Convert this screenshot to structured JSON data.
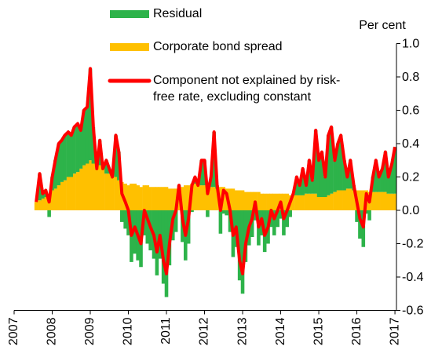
{
  "chart_data": {
    "type": "bar",
    "y_axis_label": "Per cent",
    "x": [
      2007.58,
      2007.67,
      2007.75,
      2007.83,
      2007.92,
      2008,
      2008.08,
      2008.17,
      2008.25,
      2008.33,
      2008.42,
      2008.5,
      2008.58,
      2008.67,
      2008.75,
      2008.83,
      2008.92,
      2009,
      2009.08,
      2009.17,
      2009.25,
      2009.33,
      2009.42,
      2009.5,
      2009.58,
      2009.67,
      2009.75,
      2009.83,
      2009.92,
      2010,
      2010.08,
      2010.17,
      2010.25,
      2010.33,
      2010.42,
      2010.5,
      2010.58,
      2010.67,
      2010.75,
      2010.83,
      2010.92,
      2011,
      2011.08,
      2011.17,
      2011.25,
      2011.33,
      2011.42,
      2011.5,
      2011.58,
      2011.67,
      2011.75,
      2011.83,
      2011.92,
      2012,
      2012.08,
      2012.17,
      2012.25,
      2012.33,
      2012.42,
      2012.5,
      2012.58,
      2012.67,
      2012.75,
      2012.83,
      2012.92,
      2013,
      2013.08,
      2013.17,
      2013.25,
      2013.33,
      2013.42,
      2013.5,
      2013.58,
      2013.67,
      2013.75,
      2013.83,
      2013.92,
      2014,
      2014.08,
      2014.17,
      2014.25,
      2014.33,
      2014.42,
      2014.5,
      2014.58,
      2014.67,
      2014.75,
      2014.83,
      2014.92,
      2015,
      2015.08,
      2015.17,
      2015.25,
      2015.33,
      2015.42,
      2015.5,
      2015.58,
      2015.67,
      2015.75,
      2015.83,
      2015.92,
      2016,
      2016.08,
      2016.17,
      2016.25,
      2016.33,
      2016.42,
      2016.5,
      2016.58,
      2016.67,
      2016.75,
      2016.83,
      2016.92,
      2017
    ],
    "series": [
      {
        "name": "Corporate bond spread",
        "color": "#ffc000",
        "type": "bar",
        "values": [
          0.05,
          0.06,
          0.07,
          0.08,
          0.09,
          0.12,
          0.13,
          0.15,
          0.17,
          0.18,
          0.2,
          0.2,
          0.22,
          0.23,
          0.25,
          0.27,
          0.28,
          0.3,
          0.28,
          0.25,
          0.27,
          0.25,
          0.22,
          0.22,
          0.2,
          0.2,
          0.18,
          0.17,
          0.16,
          0.15,
          0.16,
          0.16,
          0.15,
          0.14,
          0.15,
          0.15,
          0.14,
          0.14,
          0.14,
          0.14,
          0.14,
          0.14,
          0.13,
          0.13,
          0.13,
          0.13,
          0.14,
          0.15,
          0.15,
          0.16,
          0.16,
          0.15,
          0.15,
          0.15,
          0.14,
          0.14,
          0.14,
          0.13,
          0.14,
          0.14,
          0.13,
          0.13,
          0.13,
          0.12,
          0.12,
          0.12,
          0.11,
          0.11,
          0.11,
          0.11,
          0.11,
          0.1,
          0.1,
          0.1,
          0.1,
          0.1,
          0.1,
          0.1,
          0.1,
          0.1,
          0.09,
          0.09,
          0.09,
          0.09,
          0.09,
          0.1,
          0.1,
          0.1,
          0.1,
          0.08,
          0.08,
          0.08,
          0.09,
          0.1,
          0.11,
          0.12,
          0.12,
          0.12,
          0.13,
          0.13,
          0.12,
          0.12,
          0.12,
          0.12,
          0.12,
          0.11,
          0.11,
          0.11,
          0.11,
          0.11,
          0.11,
          0.1,
          0.1,
          0.1
        ]
      },
      {
        "name": "Residual",
        "color": "#2db34a",
        "type": "bar",
        "values": [
          0,
          0.16,
          0.03,
          0.04,
          -0.04,
          0.08,
          0.17,
          0.25,
          0.25,
          0.27,
          0.27,
          0.25,
          0.28,
          0.29,
          0.23,
          0.33,
          0.34,
          0.55,
          0.22,
          0,
          0.15,
          0,
          0.08,
          0.03,
          0,
          0.25,
          0.17,
          -0.07,
          -0.11,
          -0.15,
          -0.31,
          -0.26,
          -0.3,
          -0.34,
          -0.15,
          -0.2,
          -0.24,
          -0.29,
          -0.39,
          -0.29,
          -0.44,
          -0.52,
          -0.33,
          -0.18,
          -0.13,
          0.02,
          -0.19,
          -0.3,
          -0.2,
          -0.01,
          0.04,
          0,
          0.15,
          0.15,
          -0.04,
          0.06,
          0.33,
          0.02,
          -0.14,
          -0.02,
          -0.03,
          -0.13,
          -0.28,
          -0.22,
          -0.42,
          -0.5,
          -0.31,
          -0.21,
          -0.16,
          -0.06,
          -0.21,
          -0.15,
          -0.25,
          -0.2,
          -0.1,
          -0.15,
          -0.1,
          -0.05,
          -0.15,
          -0.1,
          -0.04,
          0.01,
          0.11,
          0.06,
          0.16,
          0.05,
          0.2,
          0.08,
          0.38,
          0.22,
          0.27,
          0.12,
          0.36,
          0.4,
          0.19,
          0.28,
          0.33,
          0.18,
          0.07,
          0.17,
          0.03,
          -0.07,
          -0.17,
          -0.22,
          -0.02,
          -0.06,
          0.09,
          0.19,
          0.09,
          0.14,
          0.24,
          0.1,
          0.18,
          0.28
        ]
      },
      {
        "name": "Component not explained by risk-free rate, excluding constant",
        "color": "#ff0000",
        "type": "line",
        "values": [
          0.05,
          0.22,
          0.1,
          0.12,
          0.05,
          0.2,
          0.3,
          0.4,
          0.42,
          0.45,
          0.47,
          0.45,
          0.5,
          0.52,
          0.48,
          0.6,
          0.62,
          0.85,
          0.5,
          0.25,
          0.42,
          0.25,
          0.3,
          0.25,
          0.2,
          0.45,
          0.35,
          0.1,
          0.05,
          0,
          -0.15,
          -0.1,
          -0.15,
          -0.2,
          0,
          -0.05,
          -0.1,
          -0.15,
          -0.25,
          -0.15,
          -0.3,
          -0.38,
          -0.2,
          -0.05,
          0,
          0.15,
          -0.05,
          -0.15,
          -0.05,
          0.15,
          0.2,
          0.15,
          0.3,
          0.3,
          0.1,
          0.2,
          0.47,
          0.15,
          0,
          0.12,
          0.1,
          0,
          -0.15,
          -0.1,
          -0.3,
          -0.38,
          -0.2,
          -0.1,
          -0.05,
          0.05,
          -0.1,
          -0.05,
          -0.15,
          -0.1,
          0,
          -0.05,
          0,
          0.05,
          -0.05,
          0,
          0.05,
          0.1,
          0.2,
          0.15,
          0.25,
          0.15,
          0.3,
          0.18,
          0.48,
          0.3,
          0.35,
          0.2,
          0.45,
          0.5,
          0.3,
          0.4,
          0.45,
          0.3,
          0.2,
          0.3,
          0.15,
          0.05,
          -0.05,
          -0.1,
          0.1,
          0.05,
          0.2,
          0.3,
          0.2,
          0.25,
          0.35,
          0.2,
          0.28,
          0.38
        ]
      }
    ],
    "xlim": [
      2007,
      2017.04
    ],
    "xticks": [
      2007,
      2008,
      2009,
      2010,
      2011,
      2012,
      2013,
      2014,
      2015,
      2016,
      2017
    ],
    "ylim": [
      -0.6,
      1.0
    ],
    "yticks": [
      {
        "value": 1.0,
        "label": "1.0"
      },
      0.8,
      0.6,
      0.4,
      0.2,
      {
        "value": 0.0,
        "label": "0.0"
      },
      -0.2,
      -0.4,
      -0.6
    ],
    "y_axis_side": "right"
  }
}
